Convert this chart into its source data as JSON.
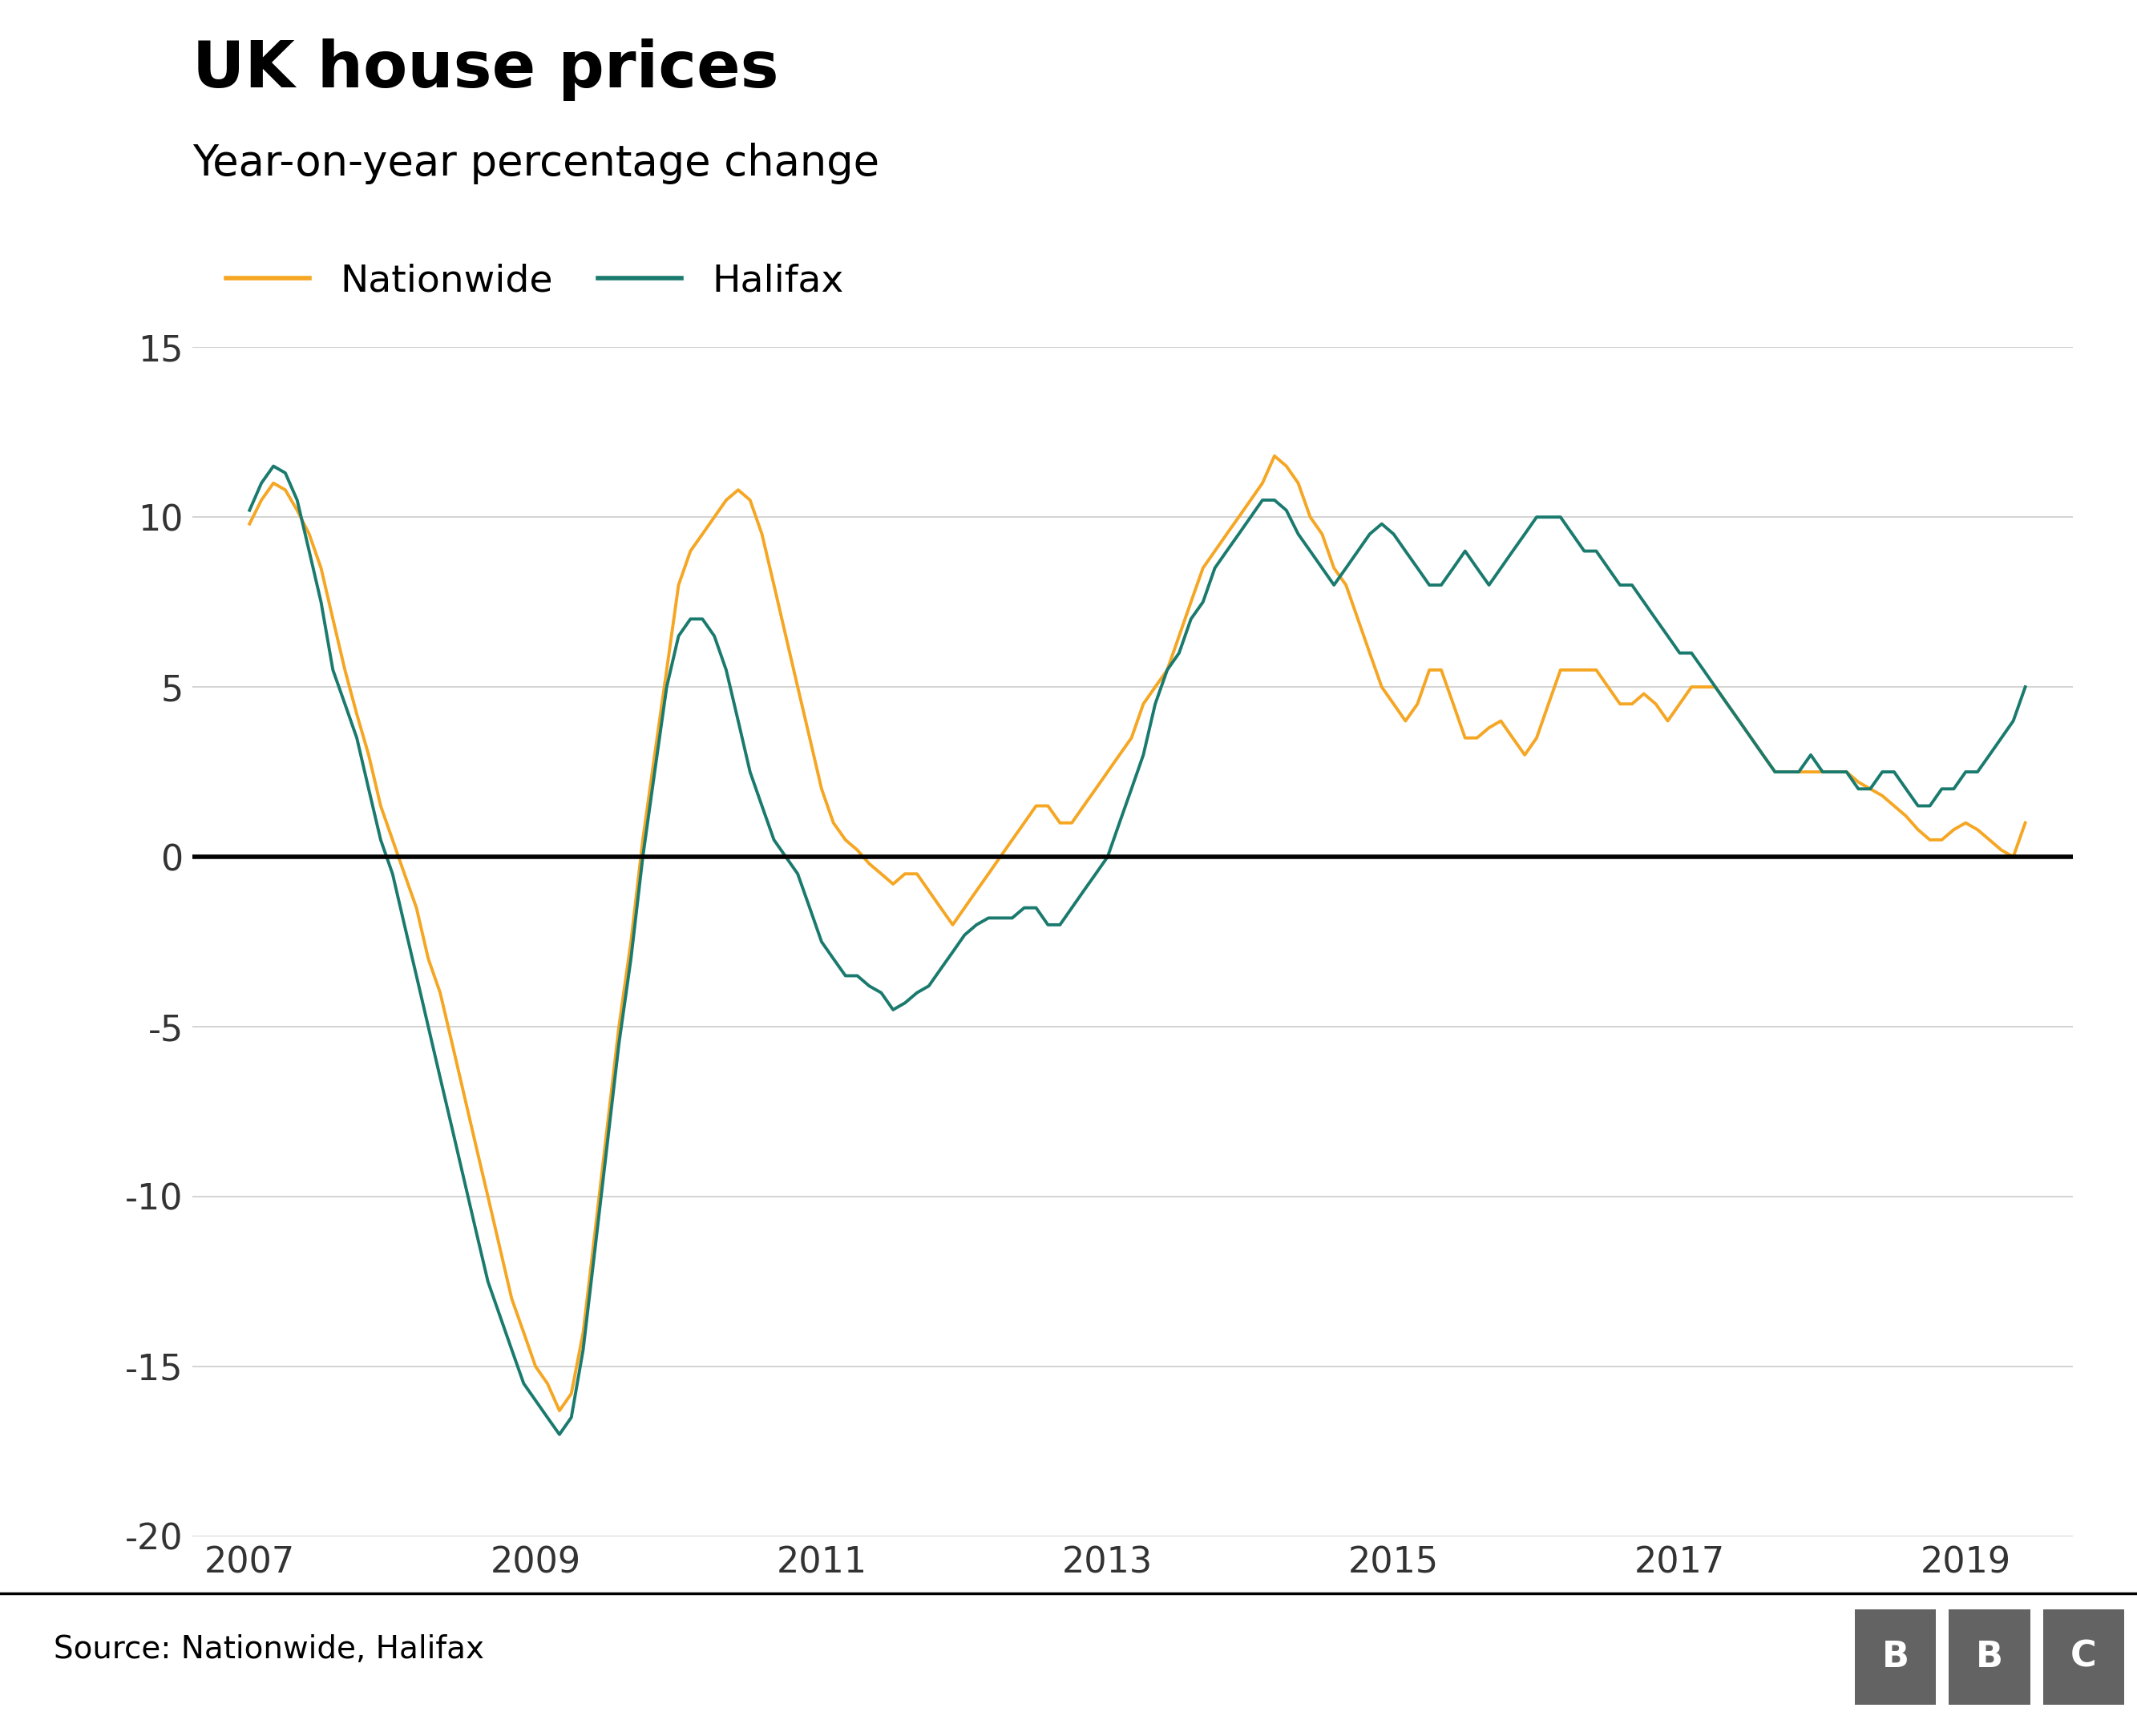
{
  "title": "UK house prices",
  "subtitle": "Year-on-year percentage change",
  "source": "Source: Nationwide, Halifax",
  "nationwide_color": "#F5A623",
  "halifax_color": "#1A7A6E",
  "background_color": "#FFFFFF",
  "grid_color": "#CCCCCC",
  "zero_line_color": "#000000",
  "ylim": [
    -20,
    15
  ],
  "yticks": [
    -20,
    -15,
    -10,
    -5,
    0,
    5,
    10,
    15
  ],
  "xticks": [
    2007,
    2009,
    2011,
    2013,
    2015,
    2017,
    2019
  ],
  "title_fontsize": 58,
  "subtitle_fontsize": 38,
  "legend_fontsize": 34,
  "tick_fontsize": 32,
  "source_fontsize": 28,
  "nationwide": {
    "x": [
      2007.0,
      2007.083,
      2007.167,
      2007.25,
      2007.333,
      2007.417,
      2007.5,
      2007.583,
      2007.667,
      2007.75,
      2007.833,
      2007.917,
      2008.0,
      2008.083,
      2008.167,
      2008.25,
      2008.333,
      2008.417,
      2008.5,
      2008.583,
      2008.667,
      2008.75,
      2008.833,
      2008.917,
      2009.0,
      2009.083,
      2009.167,
      2009.25,
      2009.333,
      2009.417,
      2009.5,
      2009.583,
      2009.667,
      2009.75,
      2009.833,
      2009.917,
      2010.0,
      2010.083,
      2010.167,
      2010.25,
      2010.333,
      2010.417,
      2010.5,
      2010.583,
      2010.667,
      2010.75,
      2010.833,
      2010.917,
      2011.0,
      2011.083,
      2011.167,
      2011.25,
      2011.333,
      2011.417,
      2011.5,
      2011.583,
      2011.667,
      2011.75,
      2011.833,
      2011.917,
      2012.0,
      2012.083,
      2012.167,
      2012.25,
      2012.333,
      2012.417,
      2012.5,
      2012.583,
      2012.667,
      2012.75,
      2012.833,
      2012.917,
      2013.0,
      2013.083,
      2013.167,
      2013.25,
      2013.333,
      2013.417,
      2013.5,
      2013.583,
      2013.667,
      2013.75,
      2013.833,
      2013.917,
      2014.0,
      2014.083,
      2014.167,
      2014.25,
      2014.333,
      2014.417,
      2014.5,
      2014.583,
      2014.667,
      2014.75,
      2014.833,
      2014.917,
      2015.0,
      2015.083,
      2015.167,
      2015.25,
      2015.333,
      2015.417,
      2015.5,
      2015.583,
      2015.667,
      2015.75,
      2015.833,
      2015.917,
      2016.0,
      2016.083,
      2016.167,
      2016.25,
      2016.333,
      2016.417,
      2016.5,
      2016.583,
      2016.667,
      2016.75,
      2016.833,
      2016.917,
      2017.0,
      2017.083,
      2017.167,
      2017.25,
      2017.333,
      2017.417,
      2017.5,
      2017.583,
      2017.667,
      2017.75,
      2017.833,
      2017.917,
      2018.0,
      2018.083,
      2018.167,
      2018.25,
      2018.333,
      2018.417,
      2018.5,
      2018.583,
      2018.667,
      2018.75,
      2018.833,
      2018.917,
      2019.0,
      2019.083,
      2019.167,
      2019.25,
      2019.333,
      2019.417
    ],
    "y": [
      9.8,
      10.5,
      11.0,
      10.8,
      10.2,
      9.5,
      8.5,
      7.0,
      5.5,
      4.2,
      3.0,
      1.5,
      0.5,
      -0.5,
      -1.5,
      -3.0,
      -4.0,
      -5.5,
      -7.0,
      -8.5,
      -10.0,
      -11.5,
      -13.0,
      -14.0,
      -15.0,
      -15.5,
      -16.3,
      -15.8,
      -14.0,
      -11.0,
      -8.0,
      -5.0,
      -2.5,
      0.5,
      3.0,
      5.5,
      8.0,
      9.0,
      9.5,
      10.0,
      10.5,
      10.8,
      10.5,
      9.5,
      8.0,
      6.5,
      5.0,
      3.5,
      2.0,
      1.0,
      0.5,
      0.2,
      -0.2,
      -0.5,
      -0.8,
      -0.5,
      -0.5,
      -1.0,
      -1.5,
      -2.0,
      -1.5,
      -1.0,
      -0.5,
      0.0,
      0.5,
      1.0,
      1.5,
      1.5,
      1.0,
      1.0,
      1.5,
      2.0,
      2.5,
      3.0,
      3.5,
      4.5,
      5.0,
      5.5,
      6.5,
      7.5,
      8.5,
      9.0,
      9.5,
      10.0,
      10.5,
      11.0,
      11.8,
      11.5,
      11.0,
      10.0,
      9.5,
      8.5,
      8.0,
      7.0,
      6.0,
      5.0,
      4.5,
      4.0,
      4.5,
      5.5,
      5.5,
      4.5,
      3.5,
      3.5,
      3.8,
      4.0,
      3.5,
      3.0,
      3.5,
      4.5,
      5.5,
      5.5,
      5.5,
      5.5,
      5.0,
      4.5,
      4.5,
      4.8,
      4.5,
      4.0,
      4.5,
      5.0,
      5.0,
      5.0,
      4.5,
      4.0,
      3.5,
      3.0,
      2.5,
      2.5,
      2.5,
      2.5,
      2.5,
      2.5,
      2.5,
      2.2,
      2.0,
      1.8,
      1.5,
      1.2,
      0.8,
      0.5,
      0.5,
      0.8,
      1.0,
      0.8,
      0.5,
      0.2,
      0.0,
      1.0
    ]
  },
  "halifax": {
    "x": [
      2007.0,
      2007.083,
      2007.167,
      2007.25,
      2007.333,
      2007.417,
      2007.5,
      2007.583,
      2007.667,
      2007.75,
      2007.833,
      2007.917,
      2008.0,
      2008.083,
      2008.167,
      2008.25,
      2008.333,
      2008.417,
      2008.5,
      2008.583,
      2008.667,
      2008.75,
      2008.833,
      2008.917,
      2009.0,
      2009.083,
      2009.167,
      2009.25,
      2009.333,
      2009.417,
      2009.5,
      2009.583,
      2009.667,
      2009.75,
      2009.833,
      2009.917,
      2010.0,
      2010.083,
      2010.167,
      2010.25,
      2010.333,
      2010.417,
      2010.5,
      2010.583,
      2010.667,
      2010.75,
      2010.833,
      2010.917,
      2011.0,
      2011.083,
      2011.167,
      2011.25,
      2011.333,
      2011.417,
      2011.5,
      2011.583,
      2011.667,
      2011.75,
      2011.833,
      2011.917,
      2012.0,
      2012.083,
      2012.167,
      2012.25,
      2012.333,
      2012.417,
      2012.5,
      2012.583,
      2012.667,
      2012.75,
      2012.833,
      2012.917,
      2013.0,
      2013.083,
      2013.167,
      2013.25,
      2013.333,
      2013.417,
      2013.5,
      2013.583,
      2013.667,
      2013.75,
      2013.833,
      2013.917,
      2014.0,
      2014.083,
      2014.167,
      2014.25,
      2014.333,
      2014.417,
      2014.5,
      2014.583,
      2014.667,
      2014.75,
      2014.833,
      2014.917,
      2015.0,
      2015.083,
      2015.167,
      2015.25,
      2015.333,
      2015.417,
      2015.5,
      2015.583,
      2015.667,
      2015.75,
      2015.833,
      2015.917,
      2016.0,
      2016.083,
      2016.167,
      2016.25,
      2016.333,
      2016.417,
      2016.5,
      2016.583,
      2016.667,
      2016.75,
      2016.833,
      2016.917,
      2017.0,
      2017.083,
      2017.167,
      2017.25,
      2017.333,
      2017.417,
      2017.5,
      2017.583,
      2017.667,
      2017.75,
      2017.833,
      2017.917,
      2018.0,
      2018.083,
      2018.167,
      2018.25,
      2018.333,
      2018.417,
      2018.5,
      2018.583,
      2018.667,
      2018.75,
      2018.833,
      2018.917,
      2019.0,
      2019.083,
      2019.167,
      2019.25,
      2019.333,
      2019.417
    ],
    "y": [
      10.2,
      11.0,
      11.5,
      11.3,
      10.5,
      9.0,
      7.5,
      5.5,
      4.5,
      3.5,
      2.0,
      0.5,
      -0.5,
      -2.0,
      -3.5,
      -5.0,
      -6.5,
      -8.0,
      -9.5,
      -11.0,
      -12.5,
      -13.5,
      -14.5,
      -15.5,
      -16.0,
      -16.5,
      -17.0,
      -16.5,
      -14.5,
      -11.5,
      -8.5,
      -5.5,
      -3.0,
      0.0,
      2.5,
      5.0,
      6.5,
      7.0,
      7.0,
      6.5,
      5.5,
      4.0,
      2.5,
      1.5,
      0.5,
      0.0,
      -0.5,
      -1.5,
      -2.5,
      -3.0,
      -3.5,
      -3.5,
      -3.8,
      -4.0,
      -4.5,
      -4.3,
      -4.0,
      -3.8,
      -3.3,
      -2.8,
      -2.3,
      -2.0,
      -1.8,
      -1.8,
      -1.8,
      -1.5,
      -1.5,
      -2.0,
      -2.0,
      -1.5,
      -1.0,
      -0.5,
      0.0,
      1.0,
      2.0,
      3.0,
      4.5,
      5.5,
      6.0,
      7.0,
      7.5,
      8.5,
      9.0,
      9.5,
      10.0,
      10.5,
      10.5,
      10.2,
      9.5,
      9.0,
      8.5,
      8.0,
      8.5,
      9.0,
      9.5,
      9.8,
      9.5,
      9.0,
      8.5,
      8.0,
      8.0,
      8.5,
      9.0,
      8.5,
      8.0,
      8.5,
      9.0,
      9.5,
      10.0,
      10.0,
      10.0,
      9.5,
      9.0,
      9.0,
      8.5,
      8.0,
      8.0,
      7.5,
      7.0,
      6.5,
      6.0,
      6.0,
      5.5,
      5.0,
      4.5,
      4.0,
      3.5,
      3.0,
      2.5,
      2.5,
      2.5,
      3.0,
      2.5,
      2.5,
      2.5,
      2.0,
      2.0,
      2.5,
      2.5,
      2.0,
      1.5,
      1.5,
      2.0,
      2.0,
      2.5,
      2.5,
      3.0,
      3.5,
      4.0,
      5.0
    ]
  }
}
